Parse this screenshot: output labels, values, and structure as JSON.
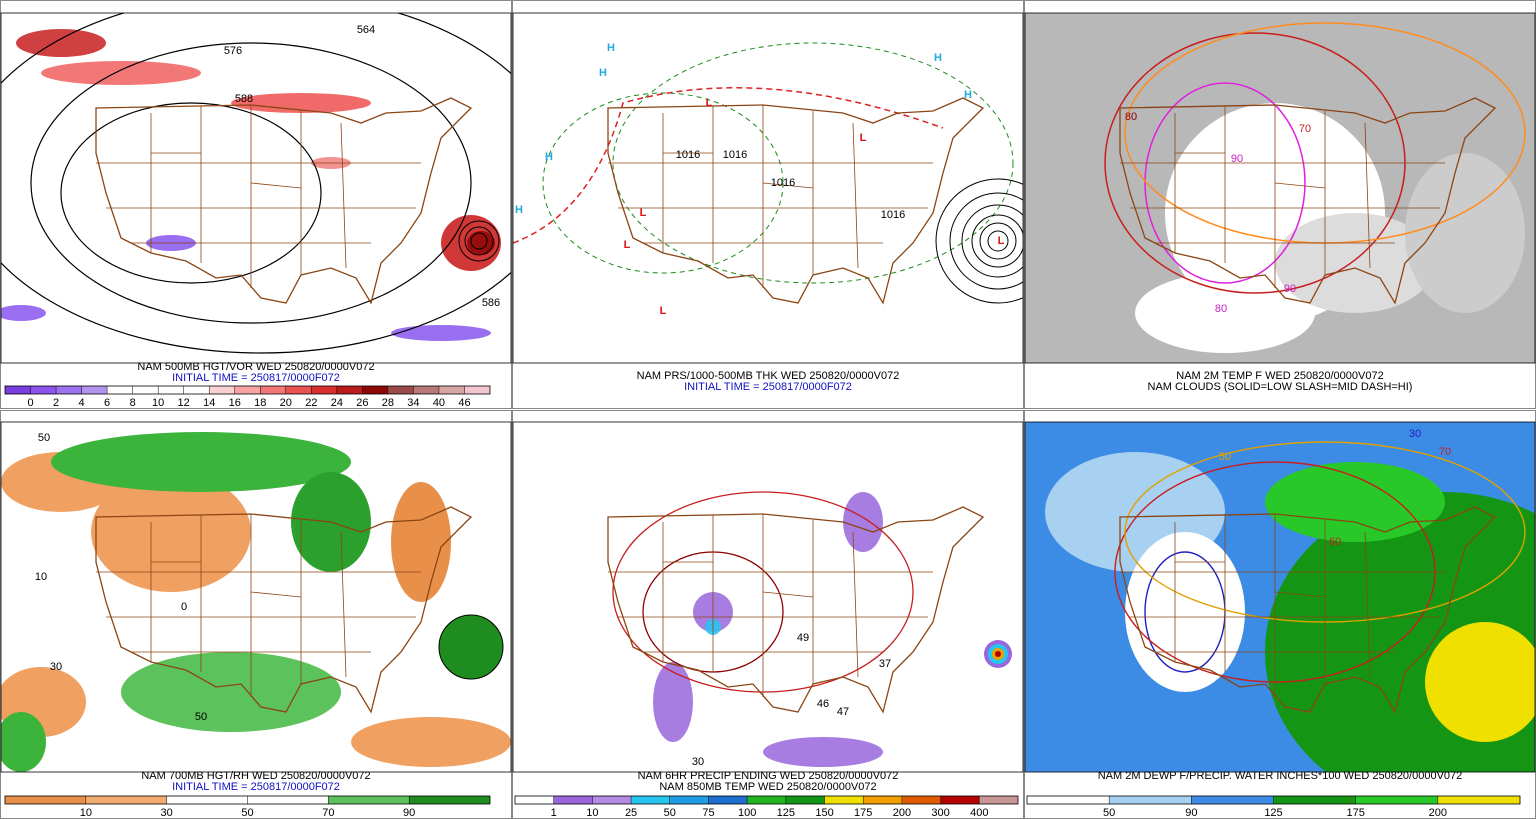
{
  "panels": [
    {
      "captions": [
        {
          "text": "NAM 500MB HGT/VOR WED 250820/0000V072",
          "color": "#000000"
        },
        {
          "text": "INITIAL TIME = 250817/0000F072",
          "color": "#1010c0"
        }
      ],
      "annotations": [
        "564",
        "576",
        "588",
        "586"
      ],
      "colorbar": {
        "labels": [
          0,
          2,
          4,
          6,
          8,
          10,
          12,
          14,
          16,
          18,
          20,
          22,
          24,
          26,
          28,
          34,
          40,
          46
        ],
        "colors": [
          "#7a3de0",
          "#8b55ec",
          "#9d72ee",
          "#b393f0",
          "#ffffff",
          "#ffffff",
          "#ffffff",
          "#ffffff",
          "#fbd0d0",
          "#f7a3a3",
          "#f27878",
          "#ea5252",
          "#d82e2e",
          "#bb1a1a",
          "#8e0606",
          "#9b4a4a",
          "#b87878",
          "#d9a6a6",
          "#f2c6cf"
        ]
      }
    },
    {
      "captions": [
        {
          "text": "NAM PRS/1000-500MB THK WED 250820/0000V072",
          "color": "#000000"
        },
        {
          "text": "INITIAL TIME = 250817/0000F072",
          "color": "#1010c0"
        }
      ],
      "annotations": [
        "H",
        "H",
        "H",
        "H",
        "H",
        "H",
        "L",
        "L",
        "L",
        "L",
        "L",
        "L",
        "1016",
        "1016",
        "1016",
        "1016"
      ]
    },
    {
      "captions": [
        {
          "text": "NAM 2M TEMP F WED 250820/0000V072",
          "color": "#000000"
        },
        {
          "text": "NAM CLOUDS (SOLID=LOW SLASH=MID DASH=HI)",
          "color": "#000000"
        }
      ],
      "annotations": [
        "80",
        "90",
        "70",
        "80",
        "90"
      ]
    },
    {
      "captions": [
        {
          "text": "NAM 700MB HGT/RH WED 250820/0000V072",
          "color": "#000000"
        },
        {
          "text": "INITIAL TIME = 250817/0000F072",
          "color": "#1010c0"
        }
      ],
      "annotations": [
        "50",
        "10",
        "30",
        "50",
        "0"
      ],
      "colorbar": {
        "labels": [
          10,
          30,
          50,
          70,
          90
        ],
        "colors": [
          "#e8904a",
          "#f2ac70",
          "#ffffff",
          "#ffffff",
          "#5cc25c",
          "#1e8c1e"
        ]
      }
    },
    {
      "captions": [
        {
          "text": "NAM 6HR PRECIP ENDING WED 250820/0000V072",
          "color": "#000000"
        },
        {
          "text": "NAM 850MB TEMP WED 250820/0000V072",
          "color": "#000000"
        }
      ],
      "annotations": [
        "49",
        "47",
        "37",
        "46",
        "30"
      ],
      "colorbar": {
        "labels": [
          1,
          10,
          25,
          50,
          75,
          100,
          125,
          150,
          175,
          200,
          300,
          400
        ],
        "colors": [
          "#ffffff",
          "#9966dd",
          "#b48ce6",
          "#26c6f0",
          "#1e9ee6",
          "#1e6ed2",
          "#22b422",
          "#149614",
          "#f0e000",
          "#f0a000",
          "#e05a00",
          "#b40000",
          "#c89696"
        ]
      }
    },
    {
      "captions": [
        {
          "text": "NAM 2M DEWP F/PRECIP. WATER INCHES*100 WED 250820/0000V072",
          "color": "#000000"
        }
      ],
      "annotations": [
        "30",
        "50",
        "60",
        "70"
      ],
      "colorbar": {
        "labels": [
          50,
          90,
          125,
          175,
          200
        ],
        "colors": [
          "#ffffff",
          "#a8d0f0",
          "#3c8ce6",
          "#149614",
          "#28c828",
          "#f0e000"
        ]
      }
    }
  ]
}
